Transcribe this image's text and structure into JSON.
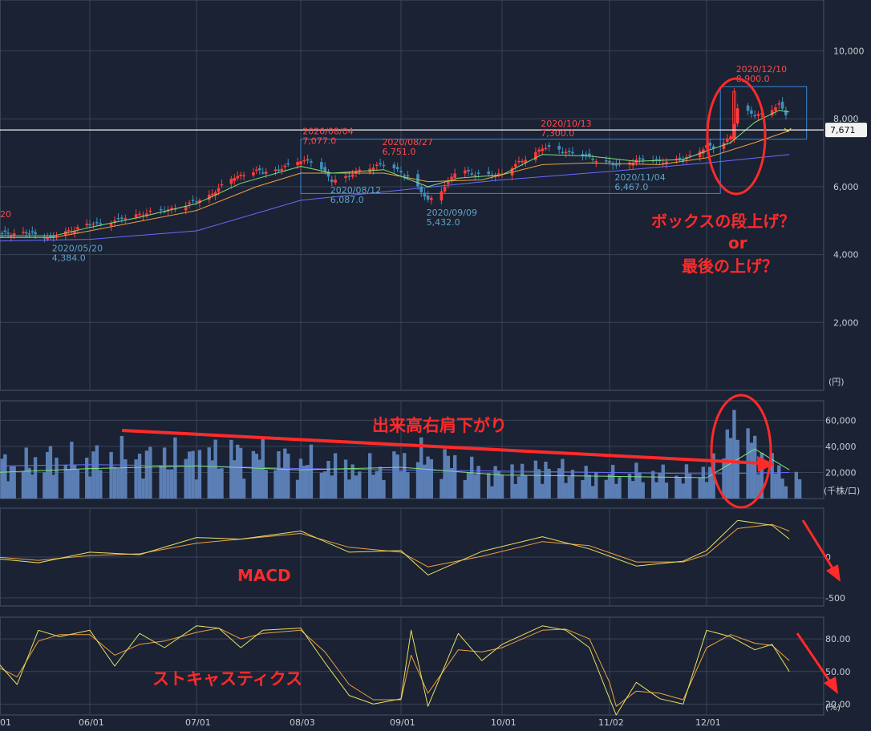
{
  "chart_data": [
    {
      "type": "candlestick",
      "panel": "price",
      "unit": "(円)",
      "ylim": [
        0,
        11500
      ],
      "y_ticks": [
        "2,000",
        "4,000",
        "6,000",
        "8,000",
        "10,000"
      ],
      "y_tick_values": [
        2000,
        4000,
        6000,
        8000,
        10000
      ],
      "x_ticks": [
        "06/01",
        "07/01",
        "08/03",
        "09/01",
        "10/01",
        "11/02",
        "12/01"
      ],
      "last_price": "7,671",
      "last_price_value": 7671,
      "extremes": [
        {
          "date": "2020/05/20",
          "value": "4,384.0",
          "kind": "low"
        },
        {
          "date": "2020/08/04",
          "value": "7,077.0",
          "kind": "high"
        },
        {
          "date": "2020/08/12",
          "value": "6,087.0",
          "kind": "low"
        },
        {
          "date": "2020/08/27",
          "value": "6,751.0",
          "kind": "high"
        },
        {
          "date": "2020/09/09",
          "value": "5,432.0",
          "kind": "low"
        },
        {
          "date": "2020/10/13",
          "value": "7,300.0",
          "kind": "high"
        },
        {
          "date": "2020/11/04",
          "value": "6,467.0",
          "kind": "low"
        },
        {
          "date": "2020/12/10",
          "value": "8,900.0",
          "kind": "high"
        }
      ],
      "left_cut_label": "20",
      "close_path": [
        [
          "05/01",
          4600
        ],
        [
          "05/10",
          4650
        ],
        [
          "05/20",
          4500
        ],
        [
          "05/25",
          4700
        ],
        [
          "06/01",
          4900
        ],
        [
          "06/08",
          5000
        ],
        [
          "06/15",
          5200
        ],
        [
          "06/22",
          5300
        ],
        [
          "06/29",
          5500
        ],
        [
          "07/06",
          5800
        ],
        [
          "07/13",
          6300
        ],
        [
          "07/20",
          6450
        ],
        [
          "07/27",
          6500
        ],
        [
          "08/03",
          6800
        ],
        [
          "08/07",
          6700
        ],
        [
          "08/12",
          6200
        ],
        [
          "08/17",
          6300
        ],
        [
          "08/21",
          6550
        ],
        [
          "08/27",
          6650
        ],
        [
          "09/01",
          6450
        ],
        [
          "09/04",
          6200
        ],
        [
          "09/09",
          5600
        ],
        [
          "09/14",
          6000
        ],
        [
          "09/18",
          6550
        ],
        [
          "09/25",
          6300
        ],
        [
          "10/01",
          6400
        ],
        [
          "10/06",
          6700
        ],
        [
          "10/13",
          7150
        ],
        [
          "10/20",
          7050
        ],
        [
          "10/27",
          6850
        ],
        [
          "11/02",
          6700
        ],
        [
          "11/04",
          6600
        ],
        [
          "11/10",
          6800
        ],
        [
          "11/17",
          6750
        ],
        [
          "11/24",
          6800
        ],
        [
          "12/01",
          7200
        ],
        [
          "12/04",
          7100
        ],
        [
          "12/08",
          7500
        ],
        [
          "12/10",
          8300
        ],
        [
          "12/15",
          8100
        ],
        [
          "12/18",
          8200
        ],
        [
          "12/22",
          8400
        ],
        [
          "12/25",
          8000
        ]
      ],
      "ma_short": [
        [
          "05/01",
          4550
        ],
        [
          "05/20",
          4550
        ],
        [
          "06/01",
          4800
        ],
        [
          "06/15",
          5100
        ],
        [
          "07/01",
          5500
        ],
        [
          "07/15",
          6100
        ],
        [
          "08/03",
          6600
        ],
        [
          "08/12",
          6400
        ],
        [
          "08/27",
          6500
        ],
        [
          "09/09",
          6000
        ],
        [
          "09/18",
          6250
        ],
        [
          "10/01",
          6350
        ],
        [
          "10/13",
          6950
        ],
        [
          "10/27",
          6900
        ],
        [
          "11/10",
          6750
        ],
        [
          "11/24",
          6800
        ],
        [
          "12/01",
          7050
        ],
        [
          "12/08",
          7300
        ],
        [
          "12/15",
          7900
        ],
        [
          "12/22",
          8250
        ],
        [
          "12/25",
          8200
        ]
      ],
      "ma_mid": [
        [
          "05/01",
          4500
        ],
        [
          "05/20",
          4500
        ],
        [
          "06/01",
          4700
        ],
        [
          "07/01",
          5300
        ],
        [
          "07/20",
          6000
        ],
        [
          "08/03",
          6400
        ],
        [
          "08/27",
          6400
        ],
        [
          "09/09",
          6150
        ],
        [
          "09/25",
          6200
        ],
        [
          "10/13",
          6650
        ],
        [
          "10/27",
          6700
        ],
        [
          "11/17",
          6650
        ],
        [
          "12/01",
          6850
        ],
        [
          "12/15",
          7300
        ],
        [
          "12/25",
          7650
        ]
      ],
      "ma_long": [
        [
          "05/01",
          4400
        ],
        [
          "06/01",
          4450
        ],
        [
          "07/01",
          4700
        ],
        [
          "08/03",
          5600
        ],
        [
          "09/01",
          5900
        ],
        [
          "10/01",
          6200
        ],
        [
          "11/02",
          6450
        ],
        [
          "12/01",
          6700
        ],
        [
          "12/25",
          6950
        ]
      ],
      "boxes": [
        {
          "from": "08/03",
          "to": "12/05",
          "ylow": 5800,
          "yhigh": 7400
        },
        {
          "from": "12/05",
          "to": "12/30",
          "ylow": 7400,
          "yhigh": 8950
        }
      ]
    },
    {
      "type": "bar",
      "panel": "volume",
      "unit": "(千株/口)",
      "ylim": [
        0,
        75000
      ],
      "y_ticks": [
        "20,000",
        "40,000",
        "60,000"
      ],
      "y_tick_values": [
        20000,
        40000,
        60000
      ],
      "bars_by_week": [
        [
          "05/01",
          26000
        ],
        [
          "05/08",
          24000
        ],
        [
          "05/15",
          28000
        ],
        [
          "05/22",
          30000
        ],
        [
          "05/29",
          27000
        ],
        [
          "06/05",
          31000
        ],
        [
          "06/12",
          32000
        ],
        [
          "06/19",
          30000
        ],
        [
          "06/26",
          33000
        ],
        [
          "07/03",
          32000
        ],
        [
          "07/10",
          34000
        ],
        [
          "07/17",
          33000
        ],
        [
          "07/24",
          31000
        ],
        [
          "07/31",
          28000
        ],
        [
          "08/07",
          27000
        ],
        [
          "08/14",
          25000
        ],
        [
          "08/21",
          22000
        ],
        [
          "08/28",
          24000
        ],
        [
          "09/04",
          32000
        ],
        [
          "09/11",
          30000
        ],
        [
          "09/18",
          26000
        ],
        [
          "09/25",
          20000
        ],
        [
          "10/02",
          19000
        ],
        [
          "10/09",
          21000
        ],
        [
          "10/16",
          24000
        ],
        [
          "10/23",
          18000
        ],
        [
          "10/30",
          17000
        ],
        [
          "11/06",
          18000
        ],
        [
          "11/13",
          19000
        ],
        [
          "11/20",
          17000
        ],
        [
          "11/27",
          18000
        ],
        [
          "12/04",
          25000
        ],
        [
          "12/10",
          68000
        ],
        [
          "12/15",
          40000
        ],
        [
          "12/22",
          20000
        ],
        [
          "12/25",
          15000
        ]
      ],
      "ma_short_by_week": [
        [
          "05/01",
          20000
        ],
        [
          "06/01",
          23000
        ],
        [
          "07/01",
          25000
        ],
        [
          "08/03",
          22000
        ],
        [
          "09/01",
          24000
        ],
        [
          "10/01",
          18000
        ],
        [
          "11/02",
          17000
        ],
        [
          "12/01",
          16000
        ],
        [
          "12/15",
          38000
        ],
        [
          "12/25",
          22000
        ]
      ],
      "ma_long_by_week": [
        [
          "05/01",
          25000
        ],
        [
          "06/01",
          26000
        ],
        [
          "07/01",
          25000
        ],
        [
          "08/03",
          23000
        ],
        [
          "09/01",
          22000
        ],
        [
          "10/01",
          21000
        ],
        [
          "11/02",
          20000
        ],
        [
          "12/01",
          19000
        ],
        [
          "12/25",
          20000
        ]
      ]
    },
    {
      "type": "line",
      "panel": "macd",
      "ylim": [
        -600,
        600
      ],
      "y_ticks": [
        "0",
        "-500"
      ],
      "y_tick_values": [
        0,
        -500
      ],
      "macd": [
        [
          "05/01",
          -20
        ],
        [
          "05/15",
          -70
        ],
        [
          "06/01",
          60
        ],
        [
          "06/15",
          30
        ],
        [
          "07/01",
          240
        ],
        [
          "07/15",
          220
        ],
        [
          "08/03",
          320
        ],
        [
          "08/17",
          60
        ],
        [
          "09/01",
          80
        ],
        [
          "09/09",
          -220
        ],
        [
          "09/25",
          70
        ],
        [
          "10/13",
          250
        ],
        [
          "10/27",
          100
        ],
        [
          "11/10",
          -110
        ],
        [
          "11/24",
          -50
        ],
        [
          "12/01",
          80
        ],
        [
          "12/10",
          450
        ],
        [
          "12/20",
          390
        ],
        [
          "12/25",
          220
        ]
      ],
      "signal": [
        [
          "05/01",
          0
        ],
        [
          "05/15",
          -40
        ],
        [
          "06/01",
          20
        ],
        [
          "06/15",
          40
        ],
        [
          "07/01",
          170
        ],
        [
          "07/15",
          220
        ],
        [
          "08/03",
          290
        ],
        [
          "08/17",
          120
        ],
        [
          "09/01",
          60
        ],
        [
          "09/09",
          -120
        ],
        [
          "09/25",
          10
        ],
        [
          "10/13",
          190
        ],
        [
          "10/27",
          140
        ],
        [
          "11/10",
          -60
        ],
        [
          "11/24",
          -60
        ],
        [
          "12/01",
          30
        ],
        [
          "12/10",
          350
        ],
        [
          "12/20",
          400
        ],
        [
          "12/25",
          320
        ]
      ]
    },
    {
      "type": "line",
      "panel": "stochastic",
      "unit": "(%)",
      "ylim": [
        10,
        100
      ],
      "y_ticks": [
        "20.00",
        "50.00",
        "80.00"
      ],
      "y_tick_values": [
        20,
        50,
        80
      ],
      "k": [
        [
          "05/01",
          60
        ],
        [
          "05/08",
          38
        ],
        [
          "05/15",
          88
        ],
        [
          "05/22",
          82
        ],
        [
          "06/01",
          88
        ],
        [
          "06/08",
          55
        ],
        [
          "06/15",
          85
        ],
        [
          "06/22",
          72
        ],
        [
          "07/01",
          92
        ],
        [
          "07/08",
          90
        ],
        [
          "07/15",
          72
        ],
        [
          "07/22",
          88
        ],
        [
          "08/03",
          90
        ],
        [
          "08/10",
          58
        ],
        [
          "08/17",
          28
        ],
        [
          "08/24",
          20
        ],
        [
          "09/01",
          25
        ],
        [
          "09/04",
          88
        ],
        [
          "09/09",
          18
        ],
        [
          "09/18",
          85
        ],
        [
          "09/25",
          60
        ],
        [
          "10/01",
          75
        ],
        [
          "10/13",
          92
        ],
        [
          "10/20",
          88
        ],
        [
          "10/27",
          72
        ],
        [
          "11/02",
          25
        ],
        [
          "11/04",
          10
        ],
        [
          "11/10",
          40
        ],
        [
          "11/17",
          25
        ],
        [
          "11/24",
          20
        ],
        [
          "12/01",
          88
        ],
        [
          "12/08",
          82
        ],
        [
          "12/15",
          70
        ],
        [
          "12/20",
          75
        ],
        [
          "12/25",
          50
        ]
      ],
      "d": [
        [
          "05/01",
          55
        ],
        [
          "05/08",
          45
        ],
        [
          "05/15",
          78
        ],
        [
          "05/22",
          84
        ],
        [
          "06/01",
          84
        ],
        [
          "06/08",
          65
        ],
        [
          "06/15",
          75
        ],
        [
          "06/22",
          78
        ],
        [
          "07/01",
          86
        ],
        [
          "07/08",
          90
        ],
        [
          "07/15",
          80
        ],
        [
          "07/22",
          85
        ],
        [
          "08/03",
          88
        ],
        [
          "08/10",
          68
        ],
        [
          "08/17",
          38
        ],
        [
          "08/24",
          24
        ],
        [
          "09/01",
          24
        ],
        [
          "09/04",
          65
        ],
        [
          "09/09",
          30
        ],
        [
          "09/18",
          70
        ],
        [
          "09/25",
          68
        ],
        [
          "10/01",
          72
        ],
        [
          "10/13",
          88
        ],
        [
          "10/20",
          89
        ],
        [
          "10/27",
          80
        ],
        [
          "11/02",
          40
        ],
        [
          "11/04",
          18
        ],
        [
          "11/10",
          32
        ],
        [
          "11/17",
          30
        ],
        [
          "11/24",
          24
        ],
        [
          "12/01",
          72
        ],
        [
          "12/08",
          84
        ],
        [
          "12/15",
          76
        ],
        [
          "12/20",
          74
        ],
        [
          "12/25",
          60
        ]
      ]
    }
  ],
  "annotations": {
    "box_breakout": "ボックスの段上げ？",
    "or": "or",
    "final_rise": "最後の上げ？",
    "volume_trend": "出来高右肩下がり",
    "macd_label": "MACD",
    "stoch_label": "ストキャスティクス"
  },
  "colors": {
    "background": "#1a2233",
    "grid": "#3a4458",
    "up_candle": "#ff3b3b",
    "down_candle": "#3f8fb8",
    "ma_short": "#7be37b",
    "ma_mid": "#f0a040",
    "ma_long": "#6b6bff",
    "volume_bar": "#5b7fb4",
    "annotation": "#ff2a2a",
    "box": "#3a88d8",
    "price_line": "#f2f2f2"
  }
}
